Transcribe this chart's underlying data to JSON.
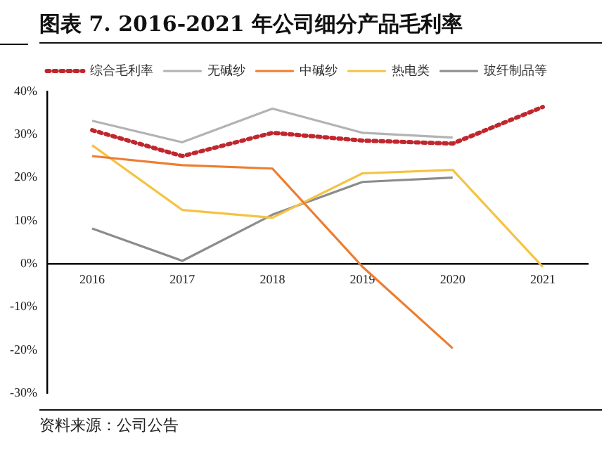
{
  "chart_data": {
    "type": "line",
    "title": "图表 7.  2016-2021 年公司细分产品毛利率",
    "categories": [
      "2016",
      "2017",
      "2018",
      "2019",
      "2020",
      "2021"
    ],
    "series": [
      {
        "name": "综合毛利率",
        "color": "#c0272d",
        "line_style": "dotted",
        "values": [
          31,
          25,
          30.4,
          28.6,
          27.9,
          36.4
        ]
      },
      {
        "name": "无碱纱",
        "color": "#b3b3b3",
        "values": [
          33.2,
          28.2,
          36,
          30.4,
          29.3,
          null
        ]
      },
      {
        "name": "中碱纱",
        "color": "#ed7d31",
        "values": [
          25,
          22.9,
          22.1,
          -0.7,
          -19.6,
          null
        ]
      },
      {
        "name": "热电类",
        "color": "#f5c342",
        "values": [
          27.5,
          12.5,
          10.7,
          21,
          21.8,
          -0.7
        ]
      },
      {
        "name": "玻纤制品等",
        "color": "#8c8c8c",
        "values": [
          8.2,
          0.7,
          11.4,
          19,
          20,
          null
        ]
      }
    ],
    "ylim": [
      -30,
      40
    ],
    "yticks": [
      {
        "value": -30,
        "label": "-30%"
      },
      {
        "value": -20,
        "label": "-20%"
      },
      {
        "value": -10,
        "label": "-10%"
      },
      {
        "value": 0,
        "label": "0%"
      },
      {
        "value": 10,
        "label": "10%"
      },
      {
        "value": 20,
        "label": "20%"
      },
      {
        "value": 30,
        "label": "30%"
      },
      {
        "value": 40,
        "label": "40%"
      }
    ],
    "grid": false,
    "legend": "top",
    "marker": "none",
    "line_style": "solid",
    "annotations": [
      "资料来源：公司公告"
    ]
  }
}
